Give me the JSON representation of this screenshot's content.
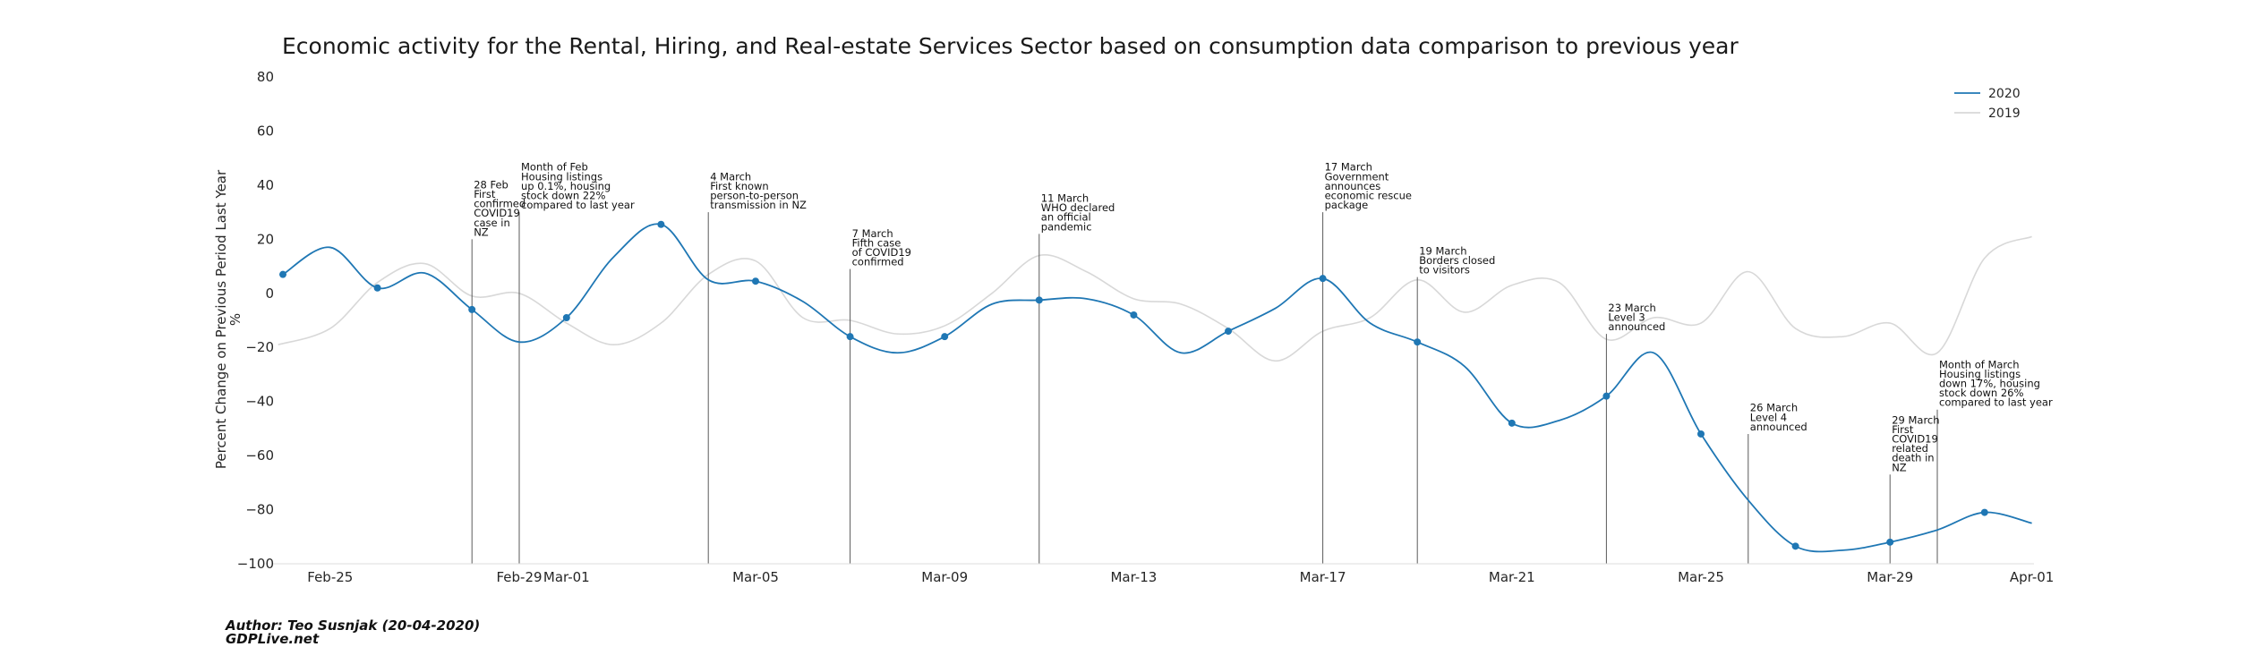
{
  "chart_data": {
    "type": "line",
    "title": "Economic activity for the Rental, Hiring, and Real-estate Services Sector based on consumption data comparison to previous year",
    "ylabel_line1": "Percent Change on Previous Period Last Year",
    "ylabel_line2": "%",
    "xlabel": "",
    "ylim": [
      -100,
      80
    ],
    "xlim": [
      -0.1,
      36.1
    ],
    "yticks": [
      80,
      60,
      40,
      20,
      0,
      -20,
      -40,
      -60,
      -80,
      -100
    ],
    "xticks": [
      {
        "label": "Feb-25",
        "x": 1
      },
      {
        "label": "Feb-29",
        "x": 5
      },
      {
        "label": "Mar-01",
        "x": 6
      },
      {
        "label": "Mar-05",
        "x": 10
      },
      {
        "label": "Mar-09",
        "x": 14
      },
      {
        "label": "Mar-13",
        "x": 18
      },
      {
        "label": "Mar-17",
        "x": 22
      },
      {
        "label": "Mar-21",
        "x": 26
      },
      {
        "label": "Mar-25",
        "x": 30
      },
      {
        "label": "Mar-29",
        "x": 34
      },
      {
        "label": "Apr-01",
        "x": 37
      }
    ],
    "legend": [
      "2020",
      "2019"
    ],
    "legend_position": "top-right",
    "grid": false,
    "series": [
      {
        "name": "2020",
        "color": "#1f77b4",
        "markers": true,
        "x": [
          0,
          1,
          2,
          3,
          4,
          5,
          6,
          7,
          8,
          9,
          10,
          11,
          12,
          13,
          14,
          15,
          16,
          17,
          18,
          19,
          20,
          21,
          22,
          23,
          24,
          25,
          26,
          27,
          28,
          29,
          30,
          31,
          32,
          33,
          34,
          35,
          36,
          37
        ],
        "values": [
          7,
          17,
          2,
          7.5,
          -6,
          -18,
          -9,
          13.5,
          25.5,
          5,
          4.5,
          -3,
          -16,
          -22,
          -16,
          -4,
          -2.5,
          -2,
          -8,
          -22,
          -14,
          -5.5,
          5.5,
          -11,
          -18,
          -27,
          -48,
          -47,
          -38,
          -22,
          -52,
          -76.5,
          -93.5,
          -95,
          -92,
          -87.5,
          -81,
          -85
        ]
      },
      {
        "name": "2019",
        "color": "#d8d8d8",
        "markers": false,
        "x": [
          -0.1,
          1,
          2,
          3,
          4,
          5,
          6,
          7,
          8,
          9,
          10,
          11,
          12,
          13,
          14,
          15,
          16,
          17,
          18,
          19,
          20,
          21,
          22,
          23,
          24,
          25,
          26,
          27,
          28,
          29,
          30,
          31,
          32,
          33,
          34,
          35,
          36,
          37
        ],
        "values": [
          -19,
          -13,
          4,
          11,
          -1,
          0,
          -11,
          -19,
          -11,
          7,
          12,
          -9,
          -10,
          -15,
          -12,
          0,
          14,
          8,
          -2,
          -4,
          -13,
          -25,
          -14,
          -9,
          5,
          -7,
          3,
          4,
          -17,
          -9,
          -11,
          8,
          -13,
          -16,
          -11,
          -22,
          13,
          21
        ]
      }
    ],
    "annotations": [
      {
        "x": 4,
        "top": 20,
        "lines": [
          "28 Feb",
          "First",
          "confirmed",
          "COVID19",
          "case in",
          "NZ"
        ]
      },
      {
        "x": 5,
        "top": 30,
        "lines": [
          "Month of Feb",
          "Housing listings",
          "up 0.1%, housing",
          "stock down 22%",
          "compared to last year"
        ]
      },
      {
        "x": 9,
        "top": 30,
        "lines": [
          "4 March",
          "First known",
          "person-to-person",
          "transmission in NZ"
        ]
      },
      {
        "x": 12,
        "top": 9,
        "lines": [
          "7 March",
          "Fifth case",
          "of COVID19",
          "confirmed"
        ]
      },
      {
        "x": 16,
        "top": 22,
        "lines": [
          "11 March",
          "WHO declared",
          "an official",
          "pandemic"
        ]
      },
      {
        "x": 22,
        "top": 30,
        "lines": [
          "17 March",
          "Government",
          "announces",
          "economic rescue",
          "package"
        ]
      },
      {
        "x": 24,
        "top": 6,
        "lines": [
          "19 March",
          "Borders closed",
          "to visitors"
        ]
      },
      {
        "x": 28,
        "top": -15,
        "lines": [
          "23 March",
          "Level 3",
          "announced"
        ]
      },
      {
        "x": 31,
        "top": -52,
        "lines": [
          "26 March",
          "Level 4",
          "announced"
        ]
      },
      {
        "x": 34,
        "top": -67,
        "lines": [
          "29 March",
          "First",
          "COVID19",
          "related",
          "death in",
          "NZ"
        ]
      },
      {
        "x": 35,
        "top": -43,
        "lines": [
          "Month of March",
          "Housing listings",
          "down 17%, housing",
          "stock down 26%",
          "compared to last year"
        ]
      }
    ]
  },
  "footer": {
    "author": "Author: Teo Susnjak (20-04-2020)",
    "site": "GDPLive.net"
  }
}
